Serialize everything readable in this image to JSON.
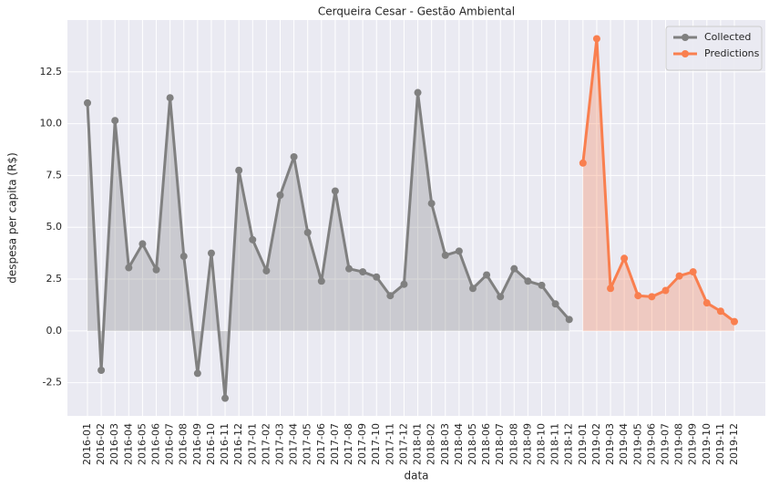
{
  "chart_data": {
    "type": "line",
    "title": "Cerqueira Cesar - Gestão Ambiental",
    "x_label": "data",
    "y_label": "despesa per capita (R$)",
    "categories": [
      "2016-01",
      "2016-02",
      "2016-03",
      "2016-04",
      "2016-05",
      "2016-06",
      "2016-07",
      "2016-08",
      "2016-09",
      "2016-10",
      "2016-11",
      "2016-12",
      "2017-01",
      "2017-02",
      "2017-03",
      "2017-04",
      "2017-05",
      "2017-06",
      "2017-07",
      "2017-08",
      "2017-09",
      "2017-10",
      "2017-11",
      "2017-12",
      "2018-01",
      "2018-02",
      "2018-03",
      "2018-04",
      "2018-05",
      "2018-06",
      "2018-07",
      "2018-08",
      "2018-09",
      "2018-10",
      "2018-11",
      "2018-12",
      "2019-01",
      "2019-02",
      "2019-03",
      "2019-04",
      "2019-05",
      "2019-06",
      "2019-07",
      "2019-08",
      "2019-09",
      "2019-10",
      "2019-11",
      "2019-12"
    ],
    "series": [
      {
        "name": "Collected",
        "color": "#808080",
        "values": [
          11.0,
          -1.9,
          10.15,
          3.05,
          4.2,
          2.95,
          11.25,
          3.6,
          -2.05,
          3.75,
          -3.25,
          7.75,
          4.4,
          2.9,
          6.55,
          8.4,
          4.75,
          2.4,
          6.75,
          3.0,
          2.85,
          2.6,
          1.7,
          2.25,
          11.5,
          6.15,
          3.65,
          3.85,
          2.05,
          2.7,
          1.65,
          3.0,
          2.4,
          2.2,
          1.3,
          0.55,
          null,
          null,
          null,
          null,
          null,
          null,
          null,
          null,
          null,
          null,
          null,
          null
        ]
      },
      {
        "name": "Predictions",
        "color": "#f97f4f",
        "values": [
          null,
          null,
          null,
          null,
          null,
          null,
          null,
          null,
          null,
          null,
          null,
          null,
          null,
          null,
          null,
          null,
          null,
          null,
          null,
          null,
          null,
          null,
          null,
          null,
          null,
          null,
          null,
          null,
          null,
          null,
          null,
          null,
          null,
          null,
          null,
          null,
          8.1,
          14.1,
          2.05,
          3.5,
          1.7,
          1.65,
          1.95,
          2.65,
          2.85,
          1.35,
          0.95,
          0.45
        ]
      }
    ],
    "ylim": [
      -4.1,
      15.0
    ],
    "yticks": [
      -2.5,
      {
        "value": 0,
        "label": "0.0"
      },
      2.5,
      {
        "value": 5,
        "label": "5.0"
      },
      7.5,
      {
        "value": 10,
        "label": "10.0"
      },
      12.5
    ],
    "grid": true,
    "area_fill": true,
    "legend": "upper right"
  }
}
